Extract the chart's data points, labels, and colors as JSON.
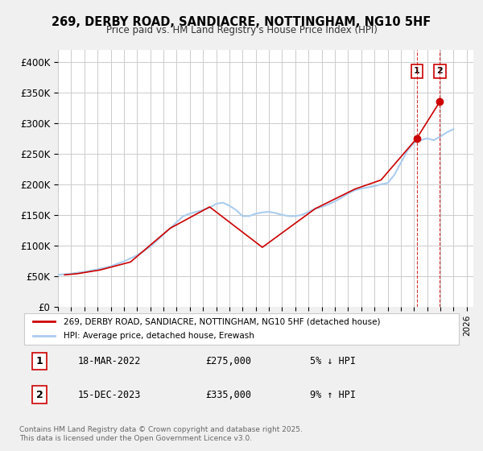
{
  "title": "269, DERBY ROAD, SANDIACRE, NOTTINGHAM, NG10 5HF",
  "subtitle": "Price paid vs. HM Land Registry's House Price Index (HPI)",
  "ylabel": "",
  "ylim": [
    0,
    420000
  ],
  "yticks": [
    0,
    50000,
    100000,
    150000,
    200000,
    250000,
    300000,
    350000,
    400000
  ],
  "ytick_labels": [
    "£0",
    "£50K",
    "£100K",
    "£150K",
    "£200K",
    "£250K",
    "£300K",
    "£350K",
    "£400K"
  ],
  "xlim_start": 1995.0,
  "xlim_end": 2026.5,
  "background_color": "#f0f0f0",
  "plot_bg_color": "#ffffff",
  "grid_color": "#cccccc",
  "line1_color": "#cc0000",
  "line2_color": "#aaccee",
  "sale1_date": 2022.21,
  "sale1_price": 275000,
  "sale2_date": 2023.96,
  "sale2_price": 335000,
  "sale1_label": "1",
  "sale2_label": "2",
  "legend_line1": "269, DERBY ROAD, SANDIACRE, NOTTINGHAM, NG10 5HF (detached house)",
  "legend_line2": "HPI: Average price, detached house, Erewash",
  "table_row1": [
    "1",
    "18-MAR-2022",
    "£275,000",
    "5% ↓ HPI"
  ],
  "table_row2": [
    "2",
    "15-DEC-2023",
    "£335,000",
    "9% ↑ HPI"
  ],
  "footnote": "Contains HM Land Registry data © Crown copyright and database right 2025.\nThis data is licensed under the Open Government Licence v3.0.",
  "hpi_years": [
    1995,
    1995.5,
    1996,
    1996.5,
    1997,
    1997.5,
    1998,
    1998.5,
    1999,
    1999.5,
    2000,
    2000.5,
    2001,
    2001.5,
    2002,
    2002.5,
    2003,
    2003.5,
    2004,
    2004.5,
    2005,
    2005.5,
    2006,
    2006.5,
    2007,
    2007.5,
    2008,
    2008.5,
    2009,
    2009.5,
    2010,
    2010.5,
    2011,
    2011.5,
    2012,
    2012.5,
    2013,
    2013.5,
    2014,
    2014.5,
    2015,
    2015.5,
    2016,
    2016.5,
    2017,
    2017.5,
    2018,
    2018.5,
    2019,
    2019.5,
    2020,
    2020.5,
    2021,
    2021.5,
    2022,
    2022.5,
    2023,
    2023.5,
    2024,
    2024.5,
    2025
  ],
  "hpi_values": [
    52000,
    53000,
    54000,
    55500,
    57000,
    59000,
    61000,
    63500,
    66000,
    70000,
    74000,
    79000,
    84000,
    91000,
    98000,
    108000,
    118000,
    128000,
    138000,
    148000,
    152000,
    155000,
    158000,
    162000,
    168000,
    170000,
    165000,
    158000,
    148000,
    148000,
    152000,
    154000,
    155000,
    153000,
    150000,
    148000,
    148000,
    150000,
    155000,
    160000,
    163000,
    167000,
    172000,
    178000,
    185000,
    190000,
    193000,
    195000,
    197000,
    200000,
    202000,
    215000,
    235000,
    255000,
    268000,
    272000,
    275000,
    272000,
    278000,
    285000,
    290000
  ],
  "price_years": [
    1995.5,
    1996.5,
    1998.2,
    2000.5,
    2003.5,
    2006.5,
    2010.5,
    2014.5,
    2017.5,
    2019.5,
    2022.21,
    2023.96
  ],
  "price_values": [
    52000,
    54000,
    60000,
    73000,
    128000,
    163000,
    97000,
    160000,
    192000,
    207000,
    275000,
    335000
  ]
}
